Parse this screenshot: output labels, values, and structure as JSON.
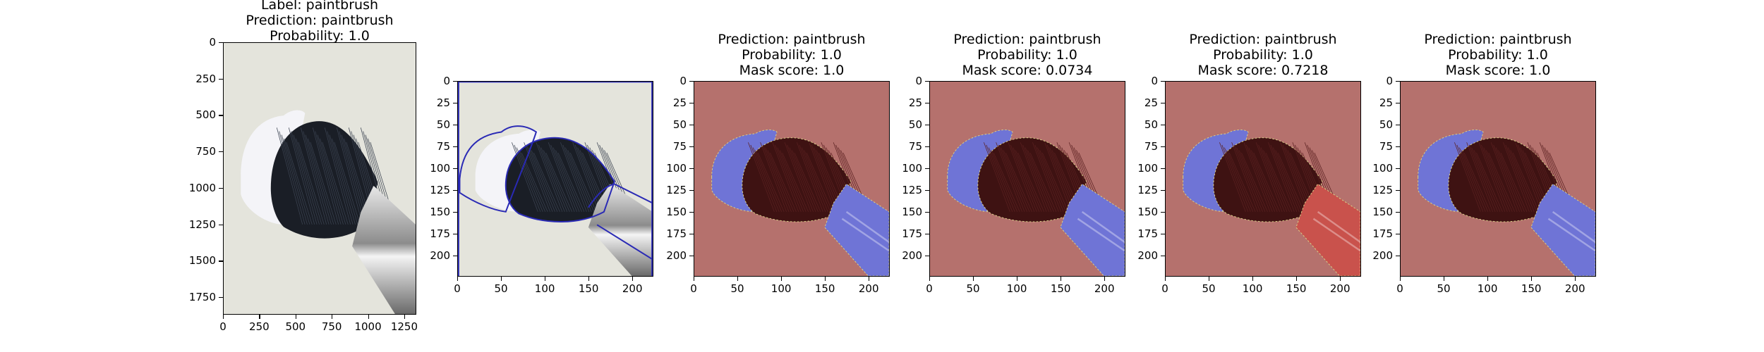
{
  "panels": [
    {
      "id": "original",
      "title_lines": [
        "Label: paintbrush",
        "Prediction: paintbrush",
        "Probability: 1.0"
      ],
      "x_ticks": [
        "0",
        "250",
        "500",
        "750",
        "1000",
        "1250"
      ],
      "y_ticks": [
        "0",
        "250",
        "500",
        "750",
        "1000",
        "1250",
        "1500",
        "1750"
      ],
      "x_max": 1333,
      "y_max": 1870
    },
    {
      "id": "contours",
      "title_lines": [],
      "x_ticks": [
        "0",
        "50",
        "100",
        "150",
        "200"
      ],
      "y_ticks": [
        "0",
        "25",
        "50",
        "75",
        "100",
        "125",
        "150",
        "175",
        "200"
      ],
      "x_max": 224,
      "y_max": 224
    },
    {
      "id": "mask-1",
      "title_lines": [
        "Prediction: paintbrush",
        "Probability: 1.0",
        "Mask score: 1.0"
      ],
      "x_ticks": [
        "0",
        "50",
        "100",
        "150",
        "200"
      ],
      "y_ticks": [
        "0",
        "25",
        "50",
        "75",
        "100",
        "125",
        "150",
        "175",
        "200"
      ],
      "x_max": 224,
      "y_max": 224,
      "handle_color": "blue",
      "hair_color": "red",
      "tips_color": "blue"
    },
    {
      "id": "mask-2",
      "title_lines": [
        "Prediction: paintbrush",
        "Probability: 1.0",
        "Mask score: 0.0734"
      ],
      "x_ticks": [
        "0",
        "50",
        "100",
        "150",
        "200"
      ],
      "y_ticks": [
        "0",
        "25",
        "50",
        "75",
        "100",
        "125",
        "150",
        "175",
        "200"
      ],
      "x_max": 224,
      "y_max": 224,
      "handle_color": "blue",
      "hair_color": "red",
      "tips_color": "blue"
    },
    {
      "id": "mask-3",
      "title_lines": [
        "Prediction: paintbrush",
        "Probability: 1.0",
        "Mask score: 0.7218"
      ],
      "x_ticks": [
        "0",
        "50",
        "100",
        "150",
        "200"
      ],
      "y_ticks": [
        "0",
        "25",
        "50",
        "75",
        "100",
        "125",
        "150",
        "175",
        "200"
      ],
      "x_max": 224,
      "y_max": 224,
      "handle_color": "red",
      "hair_color": "red",
      "tips_color": "blue"
    },
    {
      "id": "mask-4",
      "title_lines": [
        "Prediction: paintbrush",
        "Probability: 1.0",
        "Mask score: 1.0"
      ],
      "x_ticks": [
        "0",
        "50",
        "100",
        "150",
        "200"
      ],
      "y_ticks": [
        "0",
        "25",
        "50",
        "75",
        "100",
        "125",
        "150",
        "175",
        "200"
      ],
      "x_max": 224,
      "y_max": 224,
      "handle_color": "blue",
      "hair_color": "red",
      "tips_color": "blue"
    }
  ],
  "colors": {
    "background_red_overlay": "#b5716d",
    "mask_blue": "#6f74d6",
    "mask_red": "#c9524c",
    "contour_blue": "#2a2ab5",
    "photo_bg": "#e4e4dc"
  }
}
